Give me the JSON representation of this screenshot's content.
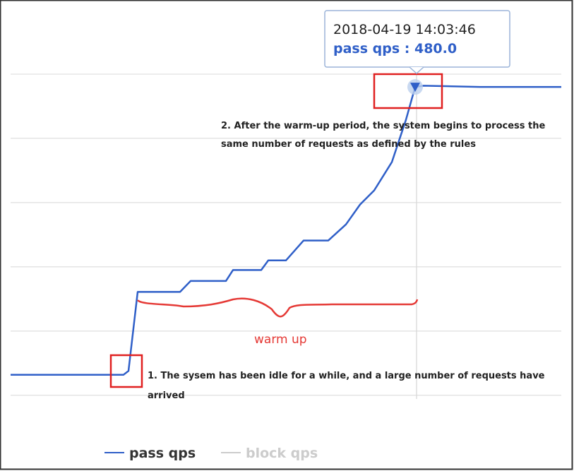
{
  "chart_data": {
    "type": "line",
    "x": [
      0,
      160,
      167,
      180,
      240,
      255,
      305,
      315,
      355,
      365,
      390,
      415,
      450,
      475,
      495,
      515,
      540,
      560,
      573,
      585,
      665,
      780
    ],
    "xlim": [
      0,
      780
    ],
    "ylim": [
      -20,
      600
    ],
    "yticks": [
      0,
      100,
      200,
      300,
      400,
      500
    ],
    "grid": true,
    "series": [
      {
        "name": "pass qps",
        "color": "#2f5fc8",
        "values": [
          32,
          32,
          38,
          161,
          161,
          178,
          178,
          195,
          195,
          210,
          210,
          241,
          241,
          266,
          297,
          319,
          363,
          429,
          480,
          482,
          480,
          480
        ]
      },
      {
        "name": "block qps",
        "color": "#cccccc",
        "values": [
          null,
          null,
          null,
          null,
          null,
          null,
          null,
          null,
          null,
          null,
          null,
          null,
          null,
          null,
          null,
          null,
          null,
          null,
          null,
          null,
          null,
          null
        ]
      }
    ],
    "tooltip": {
      "time": "2018-04-19 14:03:46",
      "label": "pass qps : 480.0",
      "index": 18
    },
    "annotations": [
      {
        "lines": [
          "2. After the warm-up period, the system begins to process the",
          "same number of requests as defined by the rules"
        ]
      },
      {
        "lines": [
          "warm up"
        ]
      },
      {
        "lines": [
          "1. The sysem has been idle for a while, and a large number of requests have",
          "arrived"
        ]
      }
    ]
  }
}
